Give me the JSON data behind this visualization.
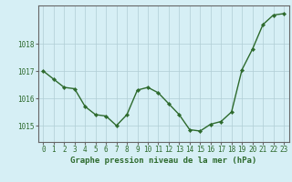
{
  "x": [
    0,
    1,
    2,
    3,
    4,
    5,
    6,
    7,
    8,
    9,
    10,
    11,
    12,
    13,
    14,
    15,
    16,
    17,
    18,
    19,
    20,
    21,
    22,
    23
  ],
  "y": [
    1017.0,
    1016.7,
    1016.4,
    1016.35,
    1015.7,
    1015.4,
    1015.35,
    1015.0,
    1015.4,
    1016.3,
    1016.4,
    1016.2,
    1015.8,
    1015.4,
    1014.85,
    1014.8,
    1015.05,
    1015.15,
    1015.5,
    1017.05,
    1017.8,
    1018.7,
    1019.05,
    1019.1
  ],
  "line_color": "#2d6a2d",
  "marker_color": "#2d6a2d",
  "bg_color": "#d6eff5",
  "grid_color": "#b0cdd4",
  "border_color": "#666666",
  "xlabel": "Graphe pression niveau de la mer (hPa)",
  "xlabel_color": "#2d6a2d",
  "yticks": [
    1015,
    1016,
    1017,
    1018
  ],
  "xticks": [
    0,
    1,
    2,
    3,
    4,
    5,
    6,
    7,
    8,
    9,
    10,
    11,
    12,
    13,
    14,
    15,
    16,
    17,
    18,
    19,
    20,
    21,
    22,
    23
  ],
  "ylim": [
    1014.4,
    1019.4
  ],
  "xlim": [
    -0.5,
    23.5
  ],
  "tick_color": "#2d6a2d",
  "tick_fontsize": 5.5,
  "xlabel_fontsize": 6.5,
  "linewidth": 1.0,
  "markersize": 2.2
}
